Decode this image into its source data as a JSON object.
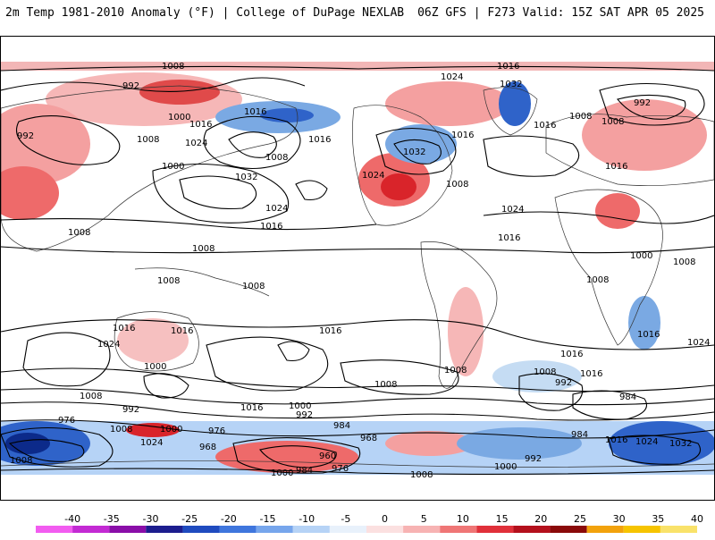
{
  "header": {
    "title_left": "2m Temp 1981-2010 Anomaly (°F) | College of DuPage NEXLAB",
    "title_right": "06Z GFS | F273 Valid: 15Z SAT APR 05 2025"
  },
  "map": {
    "isobar_labels": [
      "1008",
      "992",
      "1008",
      "1016",
      "1024",
      "1032",
      "1000",
      "992",
      "1024",
      "1000",
      "1016",
      "1024",
      "1016",
      "1008",
      "1032",
      "1016",
      "1016",
      "1008",
      "992",
      "1008",
      "1016",
      "1024",
      "1032",
      "1016",
      "1008",
      "1024",
      "1016",
      "1008",
      "1008",
      "1016",
      "1008",
      "1008",
      "1016",
      "1016",
      "1024",
      "1016",
      "1024",
      "1016",
      "1000",
      "1008",
      "1008",
      "1016",
      "1008",
      "1016",
      "1008",
      "1000",
      "1016",
      "992",
      "1008",
      "1008",
      "992",
      "984",
      "976",
      "1008",
      "1000",
      "1024",
      "968",
      "976",
      "984",
      "960",
      "984",
      "976",
      "1000",
      "1008",
      "968",
      "984",
      "1000",
      "992",
      "1032",
      "1024",
      "1016",
      "1000",
      "1008",
      "992"
    ],
    "anomaly_colors": {
      "warm_light": "#f6b7b7",
      "warm_mid": "#ee6a6a",
      "warm_strong": "#d9242a",
      "warm_extreme": "#9b0a12",
      "cool_light": "#c5dcf3",
      "cool_mid": "#7aa9e3",
      "cool_strong": "#2f63c9",
      "cool_extreme": "#0c2a8a"
    }
  },
  "colorbar": {
    "ticks": [
      "-40",
      "-35",
      "-30",
      "-25",
      "-20",
      "-15",
      "-10",
      "-5",
      "0",
      "5",
      "10",
      "15",
      "20",
      "25",
      "30",
      "35",
      "40"
    ],
    "colors": [
      "#f25cf0",
      "#c32ad3",
      "#8a0ea8",
      "#1c1d8e",
      "#1f4bbf",
      "#3f76dd",
      "#77a6ec",
      "#b6d3f6",
      "#e8f1fb",
      "#fbe0e0",
      "#f7b3b3",
      "#ef7676",
      "#e0303a",
      "#b4101c",
      "#8a0a0a",
      "#f2a20c",
      "#f6c400",
      "#f9e26a"
    ]
  }
}
